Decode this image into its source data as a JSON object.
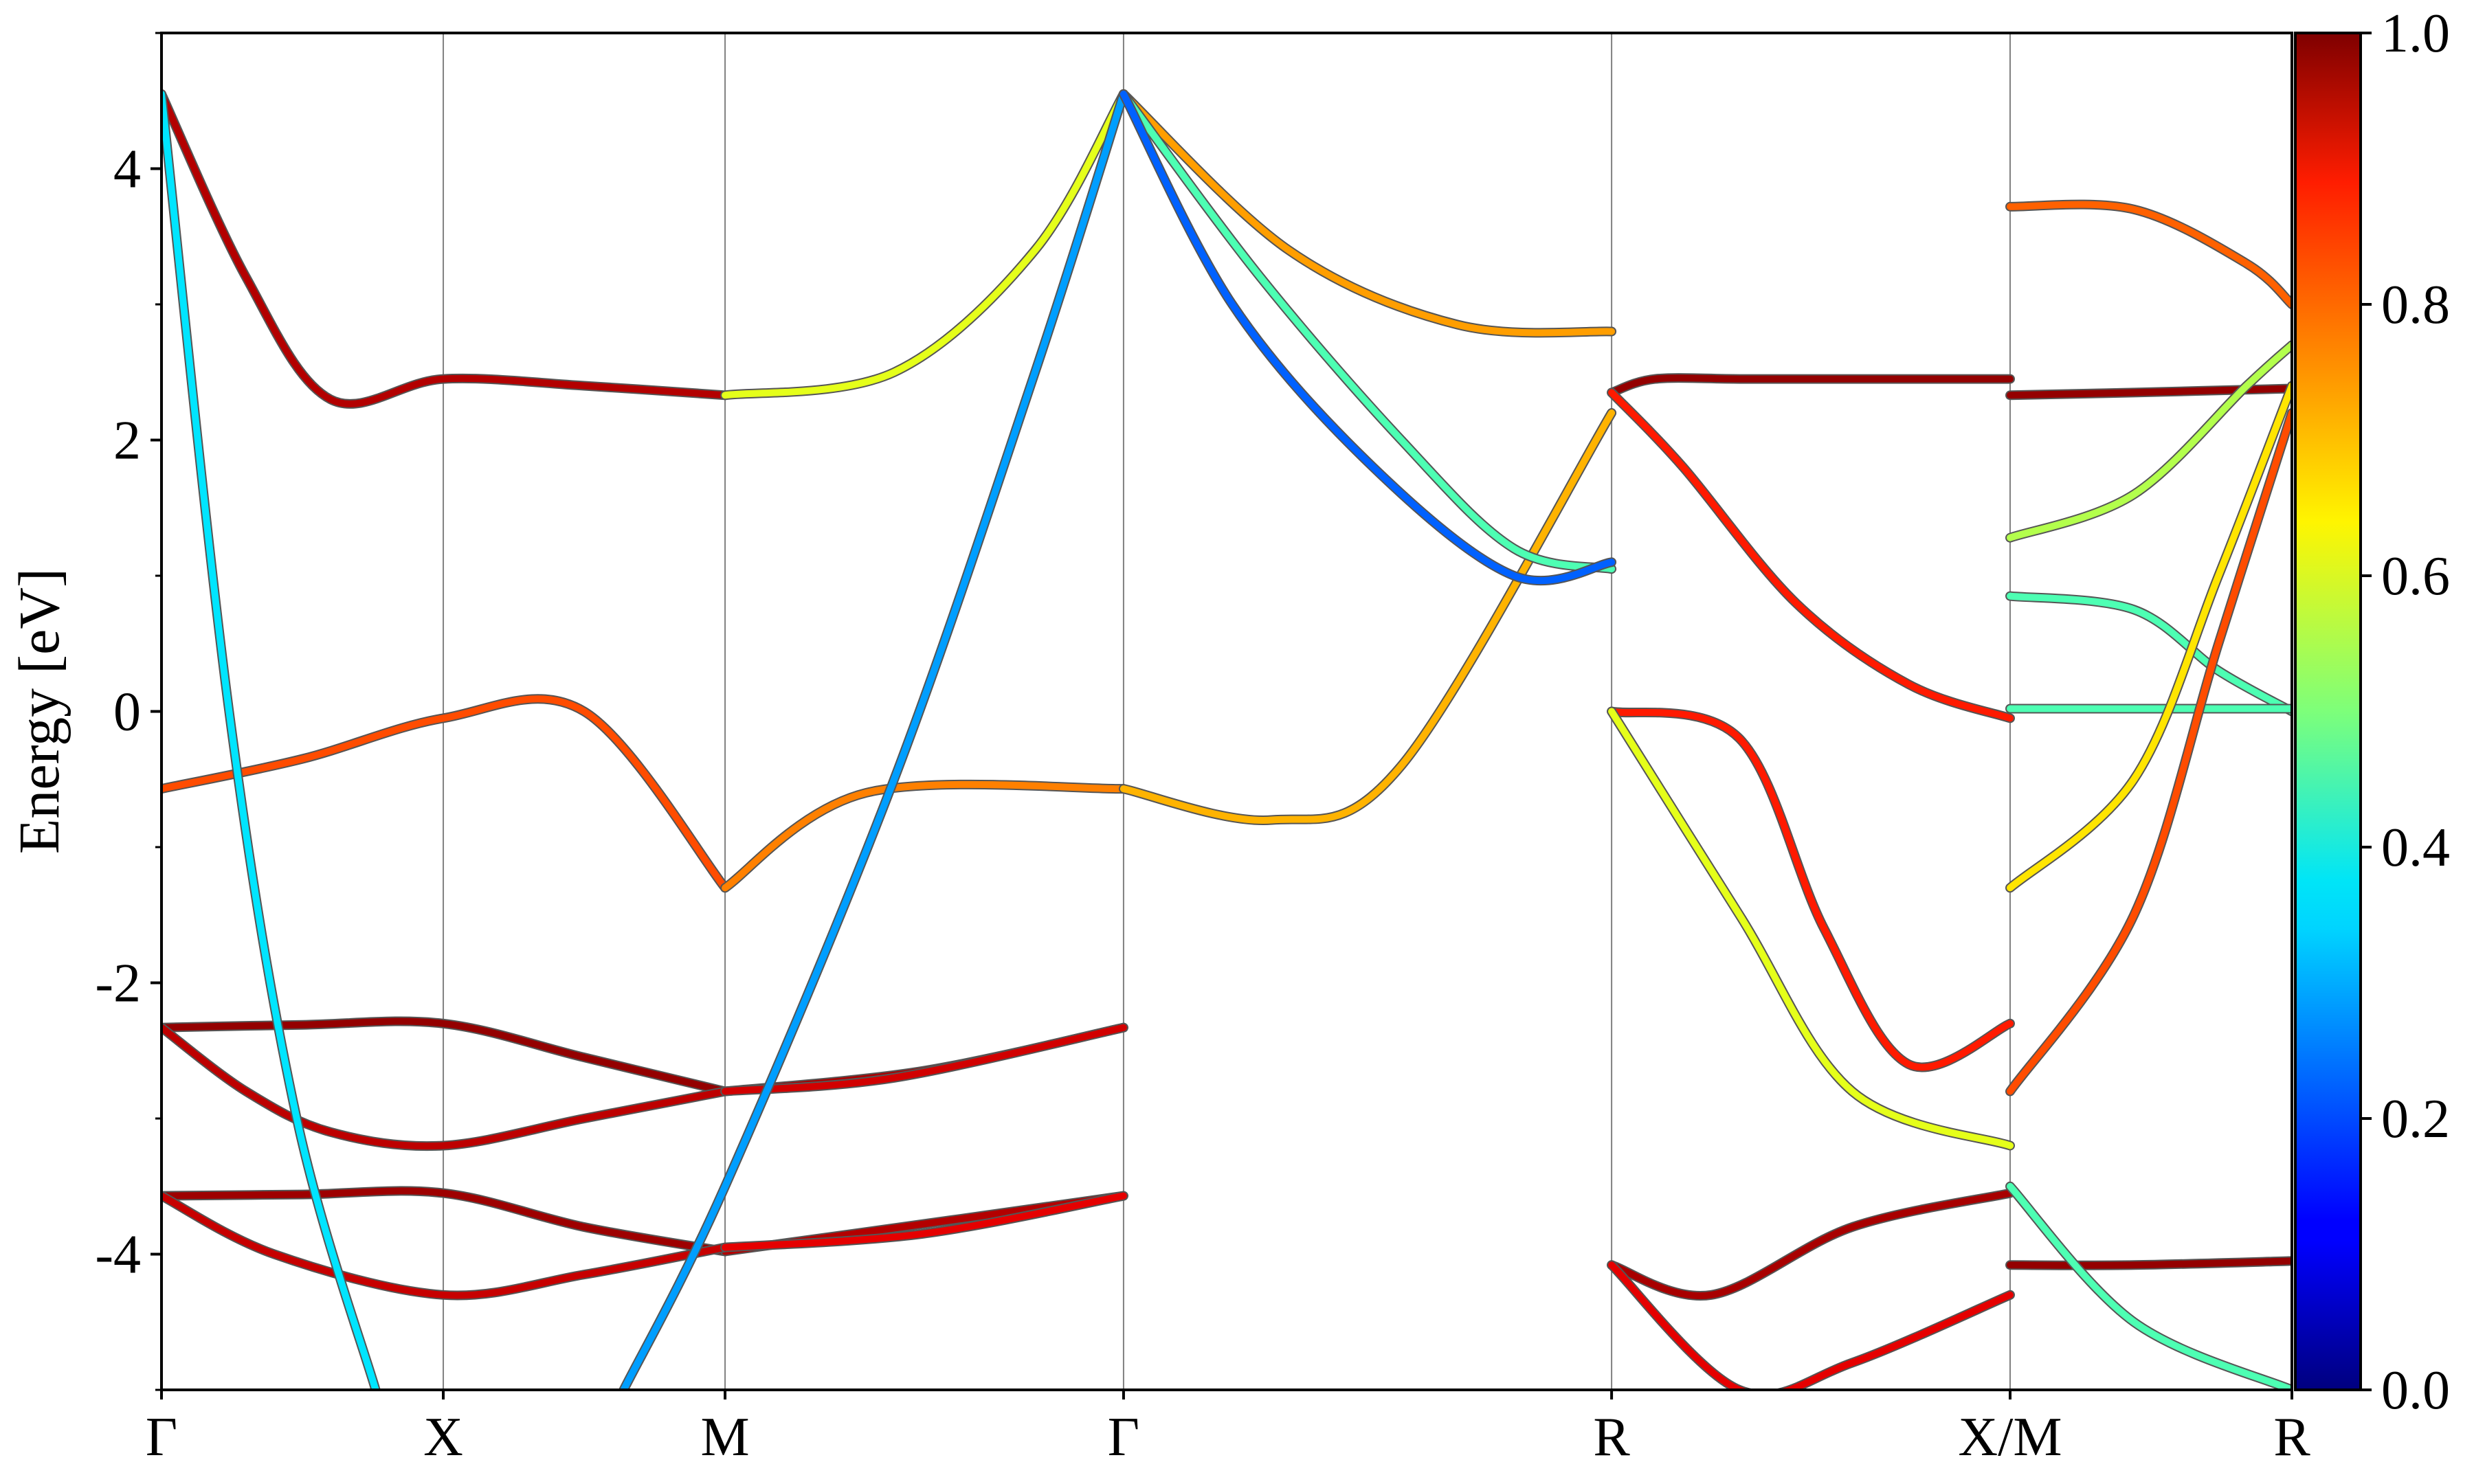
{
  "chart_data": {
    "type": "line",
    "subtype": "band-structure",
    "title": "",
    "xlabel": "",
    "ylabel": "Energy [eV]",
    "ylim": [
      -5,
      5
    ],
    "y_ticks": [
      "-4",
      "-2",
      "0",
      "2",
      "4"
    ],
    "y_tick_values": [
      -4,
      -2,
      0,
      2,
      4
    ],
    "k_points": [
      {
        "label": "Γ",
        "x": 0.0
      },
      {
        "label": "X",
        "x": 0.5
      },
      {
        "label": "M",
        "x": 1.0
      },
      {
        "label": "Γ",
        "x": 1.7071
      },
      {
        "label": "R",
        "x": 2.5731
      },
      {
        "label": "X/M",
        "x": 3.2802
      },
      {
        "label": "R",
        "x": 3.7802
      }
    ],
    "vertical_gridlines": true,
    "colorbar": {
      "colormap": "jet",
      "min": 0.0,
      "max": 1.0,
      "ticks": [
        "0.0",
        "0.2",
        "0.4",
        "0.6",
        "0.8",
        "1.0"
      ],
      "tick_values": [
        0.0,
        0.2,
        0.4,
        0.6,
        0.8,
        1.0
      ]
    },
    "series": [
      {
        "x": [
          0,
          0.25,
          0.5,
          0.75,
          1.0
        ],
        "y": [
          -2.33,
          -2.31,
          -2.3,
          -2.55,
          -2.8
        ],
        "weight": 0.98
      },
      {
        "x": [
          1.0,
          1.35,
          1.7071
        ],
        "y": [
          -2.8,
          -2.65,
          -2.33
        ],
        "weight": 0.96
      },
      {
        "x": [
          0,
          0.15,
          0.3,
          0.5,
          0.75,
          1.0
        ],
        "y": [
          -2.33,
          -2.8,
          -3.1,
          -3.2,
          -3.0,
          -2.8
        ],
        "weight": 0.94
      },
      {
        "x": [
          1.0,
          1.3,
          1.7071
        ],
        "y": [
          -2.8,
          -2.7,
          -2.33
        ],
        "weight": 0.92
      },
      {
        "x": [
          0,
          0.25,
          0.5,
          0.75,
          1.0
        ],
        "y": [
          -3.57,
          -3.56,
          -3.55,
          -3.8,
          -3.98
        ],
        "weight": 0.97
      },
      {
        "x": [
          1.0,
          1.4,
          1.7071
        ],
        "y": [
          -3.98,
          -3.75,
          -3.57
        ],
        "weight": 0.95
      },
      {
        "x": [
          0,
          0.2,
          0.5,
          0.75,
          1.0
        ],
        "y": [
          -3.57,
          -4.0,
          -4.3,
          -4.15,
          -3.95
        ],
        "weight": 0.93
      },
      {
        "x": [
          1.0,
          1.35,
          1.7071
        ],
        "y": [
          -3.95,
          -3.85,
          -3.57
        ],
        "weight": 0.9
      },
      {
        "x": [
          0,
          0.25,
          0.5,
          0.75,
          1.0
        ],
        "y": [
          -0.57,
          -0.35,
          -0.05,
          0.0,
          -1.3
        ],
        "weight": 0.8
      },
      {
        "x": [
          1.0,
          1.25,
          1.7071
        ],
        "y": [
          -1.3,
          -0.6,
          -0.57
        ],
        "weight": 0.75
      },
      {
        "x": [
          1.7071,
          1.97,
          2.2,
          2.5731
        ],
        "y": [
          -0.57,
          -0.8,
          -0.4,
          2.2
        ],
        "weight": 0.7
      },
      {
        "x": [
          0,
          0.15,
          0.3,
          0.5,
          0.75,
          1.0
        ],
        "y": [
          4.55,
          3.2,
          2.3,
          2.45,
          2.4,
          2.33
        ],
        "weight": 0.95
      },
      {
        "x": [
          1.0,
          1.3,
          1.55,
          1.7071
        ],
        "y": [
          2.33,
          2.5,
          3.4,
          4.55
        ],
        "weight": 0.6
      },
      {
        "x": [
          1.7071,
          2.0,
          2.3,
          2.5731
        ],
        "y": [
          4.55,
          3.4,
          2.85,
          2.8
        ],
        "weight": 0.72
      },
      {
        "x": [
          0,
          0.12,
          0.24,
          0.38
        ],
        "y": [
          4.55,
          0.0,
          -3.0,
          -5.0
        ],
        "weight": 0.35
      },
      {
        "x": [
          0.82,
          1.0,
          1.3,
          1.55,
          1.7071
        ],
        "y": [
          -5.0,
          -3.5,
          -0.5,
          2.5,
          4.55
        ],
        "weight": 0.28
      },
      {
        "x": [
          1.7071,
          1.95,
          2.2,
          2.4,
          2.5731
        ],
        "y": [
          4.55,
          3.2,
          2.0,
          1.2,
          1.05
        ],
        "weight": 0.45
      },
      {
        "x": [
          1.7071,
          1.9,
          2.15,
          2.4,
          2.5731
        ],
        "y": [
          4.55,
          3.0,
          1.8,
          1.0,
          1.1
        ],
        "weight": 0.22
      },
      {
        "x": [
          2.5731,
          2.65,
          2.8,
          3.0,
          3.2802
        ],
        "y": [
          2.35,
          2.45,
          2.45,
          2.45,
          2.45
        ],
        "weight": 0.98
      },
      {
        "x": [
          2.5731,
          2.7,
          2.9,
          3.1,
          3.2802
        ],
        "y": [
          2.35,
          1.8,
          0.8,
          0.2,
          -0.05
        ],
        "weight": 0.85
      },
      {
        "x": [
          2.5731,
          2.8,
          2.95,
          3.1,
          3.2802
        ],
        "y": [
          0.0,
          -0.2,
          -1.6,
          -2.6,
          -2.3
        ],
        "weight": 0.85
      },
      {
        "x": [
          2.5731,
          2.8,
          3.0,
          3.2802
        ],
        "y": [
          0.0,
          -1.5,
          -2.8,
          -3.2
        ],
        "weight": 0.6
      },
      {
        "x": [
          2.5731,
          2.75,
          3.0,
          3.2802
        ],
        "y": [
          -4.08,
          -4.3,
          -3.8,
          -3.55
        ],
        "weight": 0.96
      },
      {
        "x": [
          2.5731,
          2.8,
          3.0,
          3.2802
        ],
        "y": [
          -4.08,
          -5.0,
          -4.8,
          -4.3
        ],
        "weight": 0.9
      },
      {
        "x": [
          3.2802,
          3.5,
          3.7802
        ],
        "y": [
          2.33,
          2.35,
          2.38
        ],
        "weight": 0.98
      },
      {
        "x": [
          3.2802,
          3.5,
          3.7,
          3.7802
        ],
        "y": [
          3.72,
          3.7,
          3.3,
          3.0
        ],
        "weight": 0.78
      },
      {
        "x": [
          3.2802,
          3.5,
          3.7,
          3.7802
        ],
        "y": [
          1.28,
          1.6,
          2.4,
          2.7
        ],
        "weight": 0.55
      },
      {
        "x": [
          3.2802,
          3.5,
          3.65,
          3.7802
        ],
        "y": [
          0.85,
          0.75,
          0.3,
          0.0
        ],
        "weight": 0.45
      },
      {
        "x": [
          3.2802,
          3.5,
          3.7802
        ],
        "y": [
          0.02,
          0.02,
          0.02
        ],
        "weight": 0.45
      },
      {
        "x": [
          3.2802,
          3.5,
          3.65,
          3.7802
        ],
        "y": [
          -1.3,
          -0.5,
          1.0,
          2.4
        ],
        "weight": 0.65
      },
      {
        "x": [
          3.2802,
          3.5,
          3.65,
          3.7802
        ],
        "y": [
          -2.8,
          -1.5,
          0.5,
          2.2
        ],
        "weight": 0.8
      },
      {
        "x": [
          3.2802,
          3.5,
          3.7802
        ],
        "y": [
          -4.08,
          -4.08,
          -4.05
        ],
        "weight": 0.98
      },
      {
        "x": [
          3.2802,
          3.5,
          3.7802
        ],
        "y": [
          -3.5,
          -4.5,
          -5.0
        ],
        "weight": 0.45
      }
    ]
  }
}
